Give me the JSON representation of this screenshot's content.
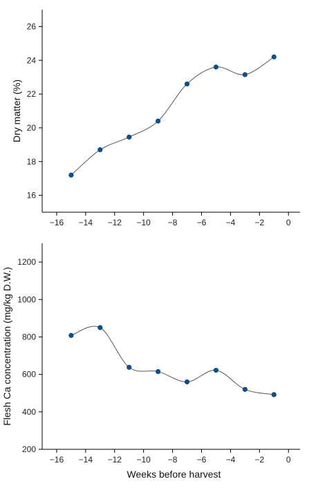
{
  "chart_data": [
    {
      "type": "line",
      "title": "",
      "xlabel": "",
      "ylabel": "Dry matter (%)",
      "xlim": [
        -17,
        0.8
      ],
      "ylim": [
        15,
        27
      ],
      "x_ticks": [
        -16,
        -14,
        -12,
        -10,
        -8,
        -6,
        -4,
        -2,
        0
      ],
      "x_tick_labels": [
        "-16",
        "-14",
        "-12",
        "-10",
        "-8",
        "-6",
        "-4",
        "-2",
        "0"
      ],
      "y_ticks": [
        16,
        18,
        20,
        22,
        24,
        26
      ],
      "y_tick_labels": [
        "16",
        "18",
        "20",
        "22",
        "24",
        "26"
      ],
      "series": [
        {
          "x": [
            -15,
            -13,
            -11,
            -9,
            -7,
            -5,
            -3,
            -1
          ],
          "values": [
            17.2,
            18.7,
            19.45,
            20.4,
            22.6,
            23.6,
            23.15,
            24.2
          ]
        }
      ],
      "smooth": true,
      "marker_color": "#0b4f8a",
      "line_color": "#555555",
      "grid": false
    },
    {
      "type": "line",
      "title": "",
      "xlabel": "Weeks before harvest",
      "ylabel": "Flesh Ca concentration (mg/kg D.W.)",
      "xlim": [
        -17,
        0.8
      ],
      "ylim": [
        200,
        1300
      ],
      "x_ticks": [
        -16,
        -14,
        -12,
        -10,
        -8,
        -6,
        -4,
        -2,
        0
      ],
      "x_tick_labels": [
        "-16",
        "-14",
        "-12",
        "-10",
        "-8",
        "-6",
        "-4",
        "-2",
        "0"
      ],
      "y_ticks": [
        200,
        400,
        600,
        800,
        1000,
        1200
      ],
      "y_tick_labels": [
        "200",
        "400",
        "600",
        "800",
        "1000",
        "1200"
      ],
      "series": [
        {
          "x": [
            -15,
            -13,
            -11,
            -9,
            -7,
            -5,
            -3,
            -1
          ],
          "values": [
            808,
            850,
            638,
            615,
            560,
            622,
            520,
            492
          ]
        }
      ],
      "smooth": true,
      "marker_color": "#0b4f8a",
      "line_color": "#555555",
      "grid": false
    }
  ]
}
